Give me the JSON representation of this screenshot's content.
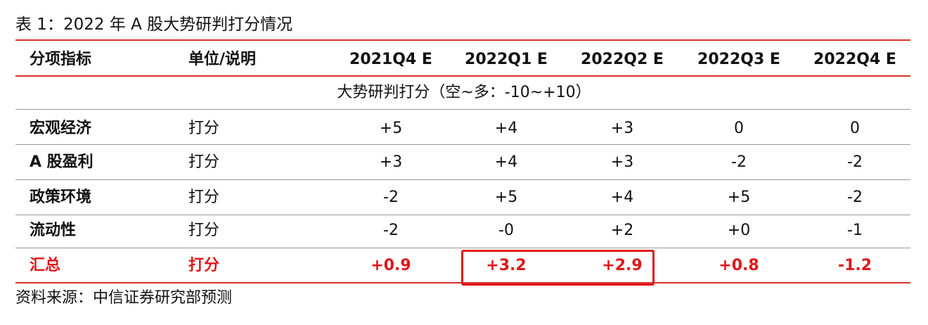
{
  "title": "表 1：2022 年 A 股大势研判打分情况",
  "table": {
    "header": [
      "分项指标",
      "单位/说明",
      "2021Q4 E",
      "2022Q1 E",
      "2022Q2 E",
      "2022Q3 E",
      "2022Q4 E"
    ],
    "section": "大势研判打分（空~多：-10~+10）",
    "rows": [
      [
        "宏观经济",
        "打分",
        "+5",
        "+4",
        "+3",
        "0",
        "0"
      ],
      [
        "A 股盈利",
        "打分",
        "+3",
        "+4",
        "+3",
        "-2",
        "-2"
      ],
      [
        "政策环境",
        "打分",
        "-2",
        "+5",
        "+4",
        "+5",
        "-2"
      ],
      [
        "流动性",
        "打分",
        "-2",
        "-0",
        "+2",
        "+0",
        "-1"
      ]
    ],
    "total": [
      "汇总",
      "打分",
      "+0.9",
      "+3.2",
      "+2.9",
      "+0.8",
      "-1.2"
    ]
  },
  "source": "资料来源：中信证券研究部预测"
}
